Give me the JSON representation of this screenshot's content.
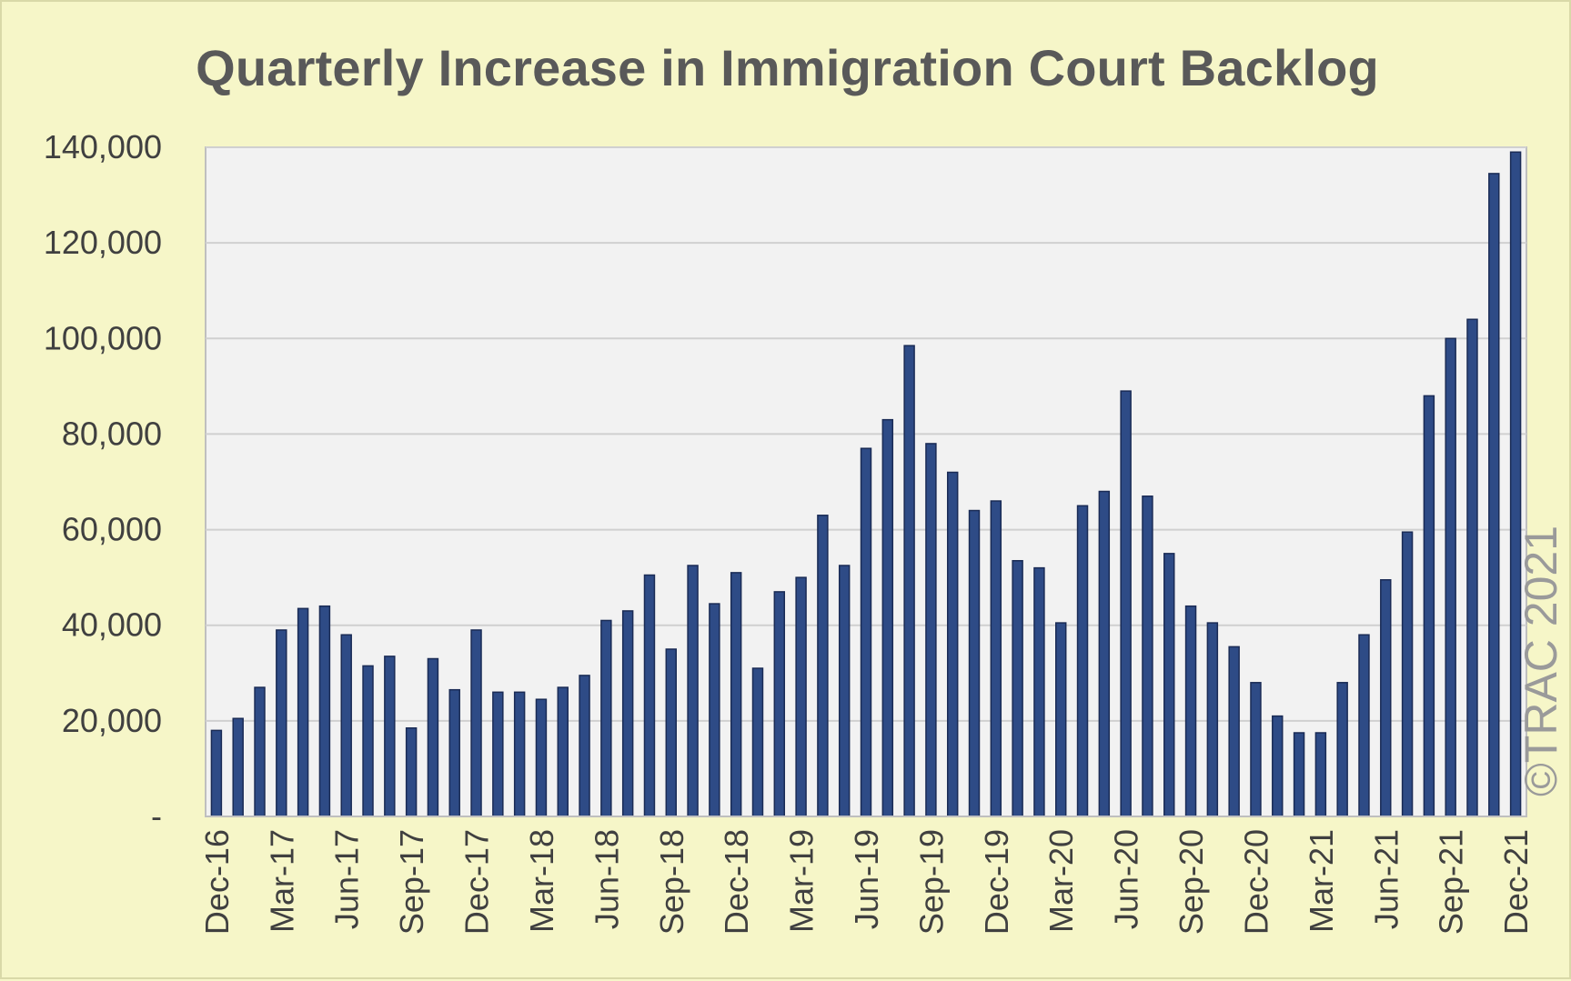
{
  "chart_data": {
    "type": "bar",
    "title": "Quarterly Increase in Immigration Court Backlog",
    "xlabel": "",
    "ylabel": "",
    "ylim": [
      0,
      140000
    ],
    "yticks": [
      0,
      20000,
      40000,
      60000,
      80000,
      100000,
      120000,
      140000
    ],
    "ytick_labels": [
      "-",
      "20,000",
      "40,000",
      "60,000",
      "80,000",
      "100,000",
      "120,000",
      "140,000"
    ],
    "grid": true,
    "legend": "none",
    "categories": [
      "Dec-16",
      "Jan-17",
      "Feb-17",
      "Mar-17",
      "Apr-17",
      "May-17",
      "Jun-17",
      "Jul-17",
      "Aug-17",
      "Sep-17",
      "Oct-17",
      "Nov-17",
      "Dec-17",
      "Jan-18",
      "Feb-18",
      "Mar-18",
      "Apr-18",
      "May-18",
      "Jun-18",
      "Jul-18",
      "Aug-18",
      "Sep-18",
      "Oct-18",
      "Nov-18",
      "Dec-18",
      "Jan-19",
      "Feb-19",
      "Mar-19",
      "Apr-19",
      "May-19",
      "Jun-19",
      "Jul-19",
      "Aug-19",
      "Sep-19",
      "Oct-19",
      "Nov-19",
      "Dec-19",
      "Jan-20",
      "Feb-20",
      "Mar-20",
      "Apr-20",
      "May-20",
      "Jun-20",
      "Jul-20",
      "Aug-20",
      "Sep-20",
      "Oct-20",
      "Nov-20",
      "Dec-20",
      "Jan-21",
      "Feb-21",
      "Mar-21",
      "Apr-21",
      "May-21",
      "Jun-21",
      "Jul-21",
      "Aug-21",
      "Sep-21",
      "Oct-21",
      "Nov-21",
      "Dec-21"
    ],
    "x_tick_labels": [
      "Dec-16",
      "Mar-17",
      "Jun-17",
      "Sep-17",
      "Dec-17",
      "Mar-18",
      "Jun-18",
      "Sep-18",
      "Dec-18",
      "Mar-19",
      "Jun-19",
      "Sep-19",
      "Dec-19",
      "Mar-20",
      "Jun-20",
      "Sep-20",
      "Dec-20",
      "Mar-21",
      "Jun-21",
      "Sep-21",
      "Dec-21"
    ],
    "values": [
      18000,
      20500,
      27000,
      39000,
      43500,
      44000,
      38000,
      31500,
      33500,
      18500,
      33000,
      26500,
      39000,
      26000,
      26000,
      24500,
      27000,
      29500,
      41000,
      43000,
      50500,
      35000,
      52500,
      44500,
      51000,
      31000,
      47000,
      50000,
      63000,
      52500,
      77000,
      83000,
      98500,
      78000,
      72000,
      64000,
      66000,
      53500,
      52000,
      40500,
      65000,
      68000,
      89000,
      67000,
      55000,
      44000,
      40500,
      35500,
      28000,
      21000,
      17500,
      17500,
      28000,
      38000,
      49500,
      59500,
      88000,
      100000,
      104000,
      134500,
      139000
    ],
    "bar_color": "#2e4b86",
    "bar_edge_color": "#1a2b55",
    "plot_background": "#f2f2f2",
    "page_background": "#f6f6c8"
  },
  "watermark": "©TRAC 2021"
}
